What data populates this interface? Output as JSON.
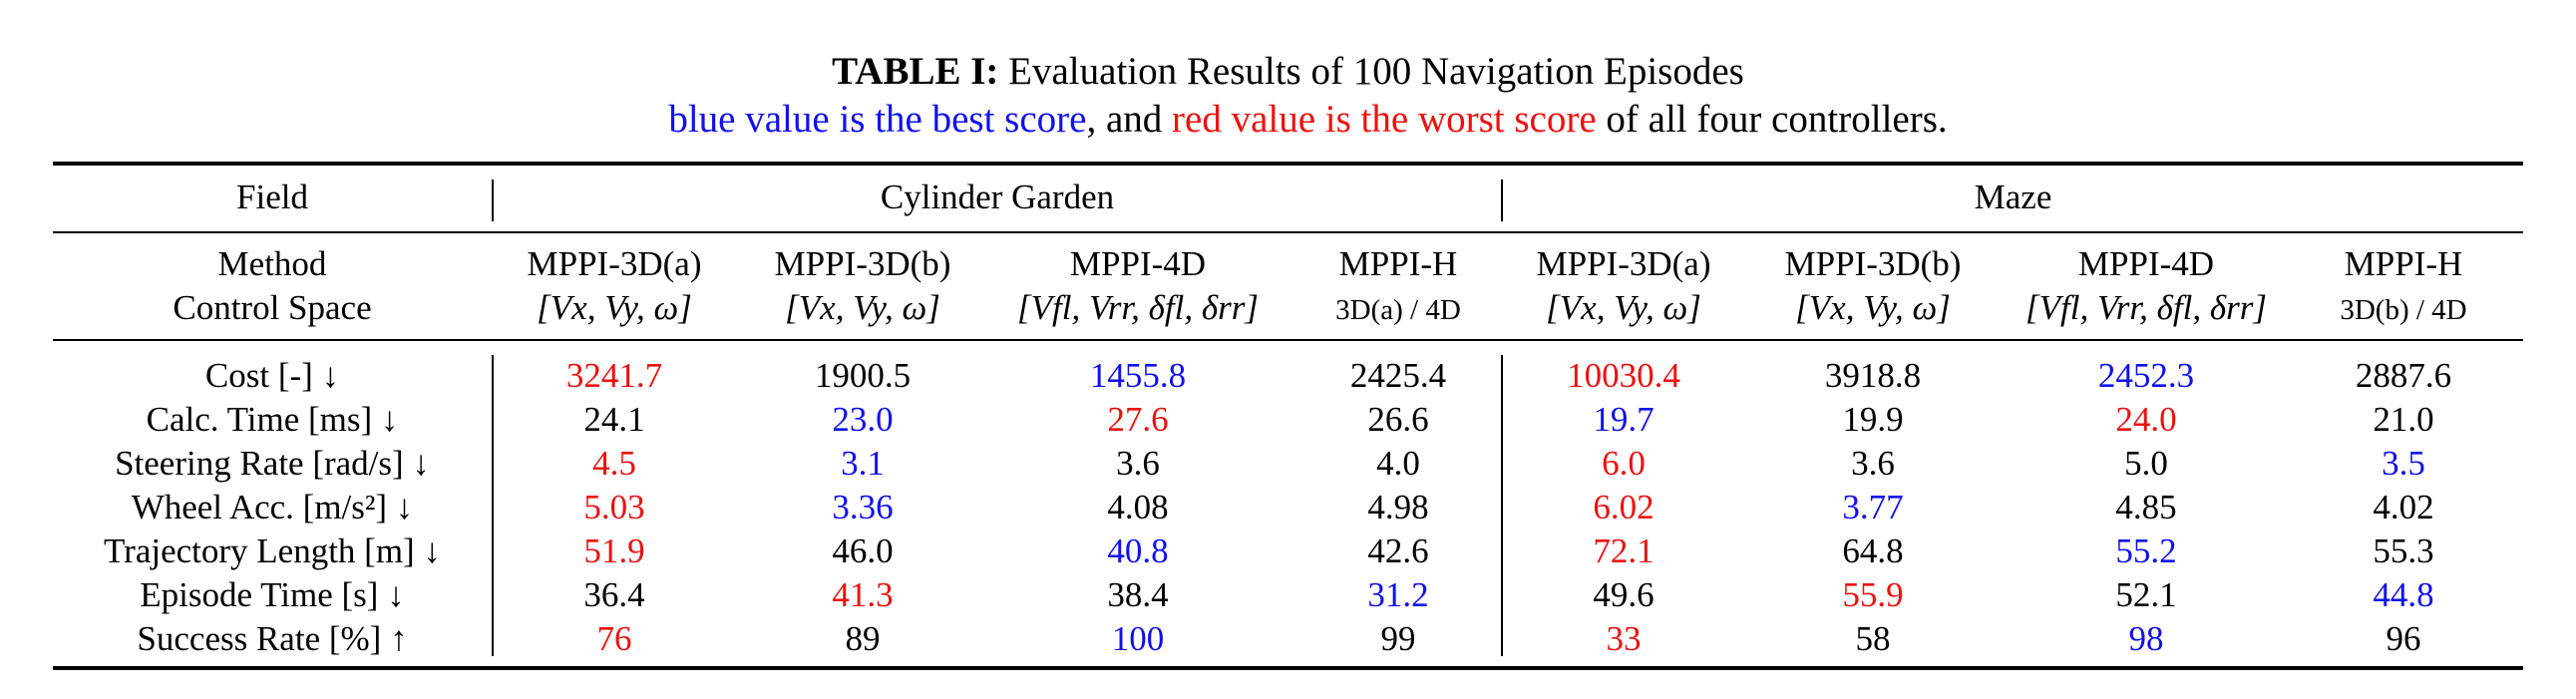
{
  "caption": {
    "label": "TABLE I:",
    "title": "Evaluation Results of 100 Navigation Episodes",
    "line2_blue": "blue value is the best score",
    "line2_mid": ", and ",
    "line2_red": "red value is the worst score",
    "line2_end": " of all four controllers."
  },
  "header": {
    "field": "Field",
    "group1": "Cylinder Garden",
    "group2": "Maze",
    "method": "Method",
    "control_space": "Control Space",
    "methods": [
      {
        "name": "MPPI-3D(a)",
        "space": "[Vx, Vy, ω]"
      },
      {
        "name": "MPPI-3D(b)",
        "space": "[Vx, Vy, ω]"
      },
      {
        "name": "MPPI-4D",
        "space": "[Vfl, Vrr, δfl, δrr]"
      },
      {
        "name": "MPPI-H",
        "space": "3D(a) / 4D"
      },
      {
        "name": "MPPI-3D(a)",
        "space": "[Vx, Vy, ω]"
      },
      {
        "name": "MPPI-3D(b)",
        "space": "[Vx, Vy, ω]"
      },
      {
        "name": "MPPI-4D",
        "space": "[Vfl, Vrr, δfl, δrr]"
      },
      {
        "name": "MPPI-H",
        "space": "3D(b) / 4D"
      }
    ]
  },
  "colors": {
    "best": "#1010ee",
    "worst": "#ee1010",
    "normal": "#000000"
  },
  "rows": [
    {
      "label": "Cost [-] ↓",
      "values": [
        "3241.7",
        "1900.5",
        "1455.8",
        "2425.4",
        "10030.4",
        "3918.8",
        "2452.3",
        "2887.6"
      ],
      "marks": [
        "worst",
        "",
        "best",
        "",
        "worst",
        "",
        "best",
        ""
      ]
    },
    {
      "label": "Calc. Time [ms] ↓",
      "values": [
        "24.1",
        "23.0",
        "27.6",
        "26.6",
        "19.7",
        "19.9",
        "24.0",
        "21.0"
      ],
      "marks": [
        "",
        "best",
        "worst",
        "",
        "best",
        "",
        "worst",
        ""
      ]
    },
    {
      "label": "Steering Rate [rad/s] ↓",
      "values": [
        "4.5",
        "3.1",
        "3.6",
        "4.0",
        "6.0",
        "3.6",
        "5.0",
        "3.5"
      ],
      "marks": [
        "worst",
        "best",
        "",
        "",
        "worst",
        "",
        "",
        "best"
      ]
    },
    {
      "label": "Wheel Acc. [m/s²] ↓",
      "values": [
        "5.03",
        "3.36",
        "4.08",
        "4.98",
        "6.02",
        "3.77",
        "4.85",
        "4.02"
      ],
      "marks": [
        "worst",
        "best",
        "",
        "",
        "worst",
        "best",
        "",
        ""
      ]
    },
    {
      "label": "Trajectory Length [m] ↓",
      "values": [
        "51.9",
        "46.0",
        "40.8",
        "42.6",
        "72.1",
        "64.8",
        "55.2",
        "55.3"
      ],
      "marks": [
        "worst",
        "",
        "best",
        "",
        "worst",
        "",
        "best",
        ""
      ]
    },
    {
      "label": "Episode Time [s] ↓",
      "values": [
        "36.4",
        "41.3",
        "38.4",
        "31.2",
        "49.6",
        "55.9",
        "52.1",
        "44.8"
      ],
      "marks": [
        "",
        "worst",
        "",
        "best",
        "",
        "worst",
        "",
        "best"
      ]
    },
    {
      "label": "Success Rate [%] ↑",
      "values": [
        "76",
        "89",
        "100",
        "99",
        "33",
        "58",
        "98",
        "96"
      ],
      "marks": [
        "worst",
        "",
        "best",
        "",
        "worst",
        "",
        "best",
        ""
      ]
    }
  ]
}
